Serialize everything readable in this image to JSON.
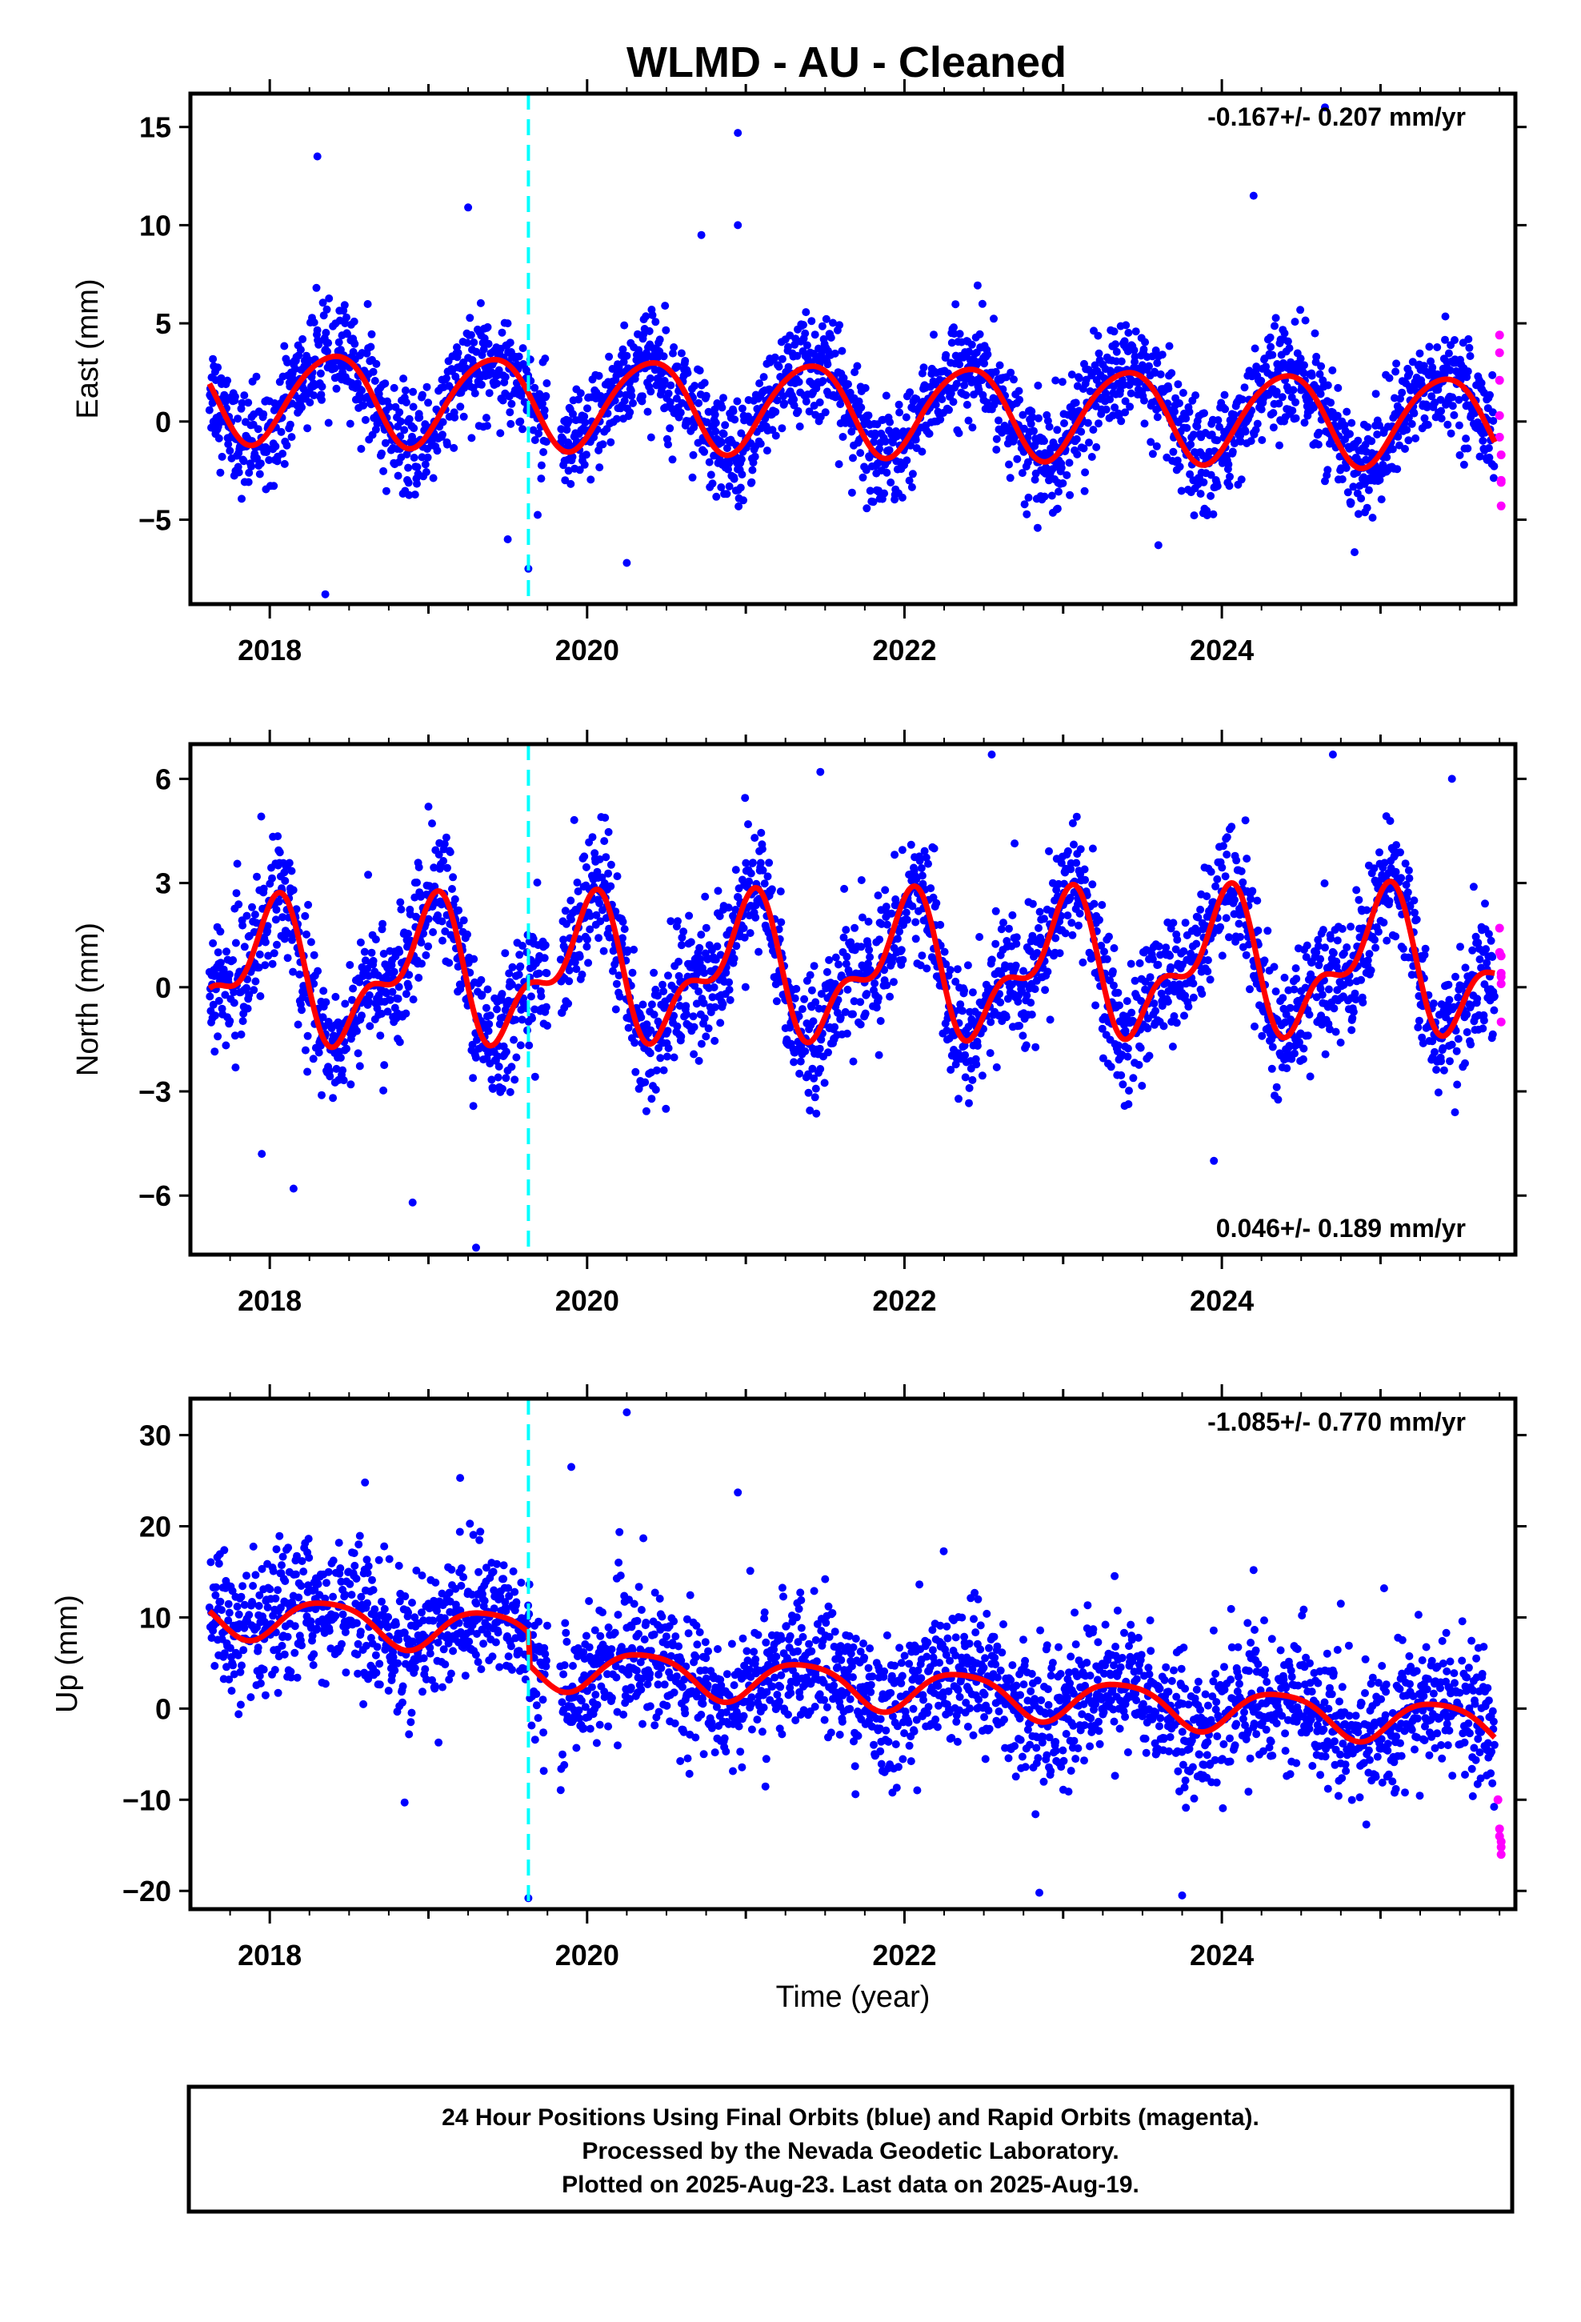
{
  "title": "WLMD  - AU - Cleaned",
  "colors": {
    "final_points": "#0000ff",
    "rapid_points": "#ff00ff",
    "model": "#ff0000",
    "event_line": "#00ffff"
  },
  "chart_data": [
    {
      "type": "scatter",
      "panel": "east",
      "ylabel": "East (mm)",
      "xlabel": "",
      "xlim": [
        2017.5,
        2025.85
      ],
      "ylim": [
        -9.3,
        16.7
      ],
      "yticks": [
        -5,
        0,
        5,
        10,
        15
      ],
      "yticklabels": [
        "−5",
        "0",
        "5",
        "10",
        "15"
      ],
      "xticks": [
        2018,
        2020,
        2022,
        2024
      ],
      "xticklabels": [
        "2018",
        "2020",
        "2022",
        "2024"
      ],
      "rate_label": "-0.167+/- 0.207 mm/yr",
      "rate_position": "top-right",
      "event_line_x": 2019.63,
      "model": {
        "offset": 0.7,
        "trend": -0.167,
        "amp": 2.3,
        "phase": -0.9,
        "amp2": 0.25,
        "phase2": 0.3,
        "step_at": 2019.63,
        "step": 0.0
      },
      "scatter_sd": 1.3,
      "outliers": [
        [
          2018.3,
          13.5
        ],
        [
          2019.25,
          10.9
        ],
        [
          2020.95,
          14.7
        ],
        [
          2020.95,
          10.0
        ],
        [
          2020.72,
          9.5
        ],
        [
          2024.2,
          11.5
        ],
        [
          2024.65,
          16.0
        ],
        [
          2018.35,
          -8.8
        ],
        [
          2019.63,
          -7.5
        ],
        [
          2020.25,
          -7.2
        ],
        [
          2019.5,
          -6.0
        ],
        [
          2023.6,
          -6.3
        ],
        [
          2024.95,
          -4.9
        ]
      ],
      "series": [
        {
          "name": "Final Orbits (blue)",
          "values": []
        },
        {
          "name": "Rapid Orbits (magenta)",
          "x": [
            2025.75,
            2025.75,
            2025.75,
            2025.75,
            2025.75,
            2025.76,
            2025.76,
            2025.76,
            2025.76
          ],
          "values": [
            4.4,
            3.5,
            2.1,
            0.3,
            -0.8,
            -1.7,
            -3.0,
            -3.1,
            -4.3
          ]
        }
      ]
    },
    {
      "type": "scatter",
      "panel": "north",
      "ylabel": "North (mm)",
      "xlabel": "",
      "xlim": [
        2017.5,
        2025.85
      ],
      "ylim": [
        -7.7,
        7.0
      ],
      "yticks": [
        -6,
        -3,
        0,
        3,
        6
      ],
      "yticklabels": [
        "−6",
        "−3",
        "0",
        "3",
        "6"
      ],
      "xticks": [
        2018,
        2020,
        2022,
        2024
      ],
      "xticklabels": [
        "2018",
        "2020",
        "2022",
        "2024"
      ],
      "rate_label": "0.046+/- 0.189 mm/yr",
      "rate_position": "bottom-right",
      "event_line_x": 2019.63,
      "model": {
        "offset": 0.5,
        "trend": 0.046,
        "amp": 1.7,
        "phase": 1.6,
        "amp2": 0.9,
        "phase2": 0.4,
        "step_at": 2019.63,
        "step": 0.0
      },
      "scatter_sd": 0.9,
      "outliers": [
        [
          2019.3,
          -7.5
        ],
        [
          2018.9,
          -6.2
        ],
        [
          2018.15,
          -5.8
        ],
        [
          2017.95,
          -4.8
        ],
        [
          2021.47,
          6.2
        ],
        [
          2022.55,
          6.7
        ],
        [
          2024.7,
          6.7
        ],
        [
          2025.45,
          6.0
        ],
        [
          2019.0,
          5.2
        ],
        [
          2023.95,
          -5.0
        ]
      ],
      "series": [
        {
          "name": "Final Orbits (blue)",
          "values": []
        },
        {
          "name": "Rapid Orbits (magenta)",
          "x": [
            2025.75,
            2025.75,
            2025.76,
            2025.76,
            2025.76,
            2025.76,
            2025.76
          ],
          "values": [
            1.7,
            1.0,
            0.9,
            0.4,
            0.3,
            0.1,
            -1.0
          ]
        }
      ]
    },
    {
      "type": "scatter",
      "panel": "up",
      "ylabel": "Up (mm)",
      "xlabel": "Time (year)",
      "xlim": [
        2017.5,
        2025.85
      ],
      "ylim": [
        -22,
        34
      ],
      "yticks": [
        -20,
        -10,
        0,
        10,
        20,
        30
      ],
      "yticklabels": [
        "−20",
        "−10",
        "0",
        "10",
        "20",
        "30"
      ],
      "xticks": [
        2018,
        2020,
        2022,
        2024
      ],
      "xticklabels": [
        "2018",
        "2020",
        "2022",
        "2024"
      ],
      "rate_label": "-1.085+/- 0.770 mm/yr",
      "rate_position": "top-right",
      "event_line_x": 2019.63,
      "model": {
        "offset": 6.2,
        "trend": -1.085,
        "amp": 2.3,
        "phase": -0.7,
        "amp2": 0.4,
        "phase2": 0.0,
        "step_at": 2019.63,
        "step": -3.5
      },
      "scatter_sd": 3.6,
      "outliers": [
        [
          2020.25,
          32.5
        ],
        [
          2019.9,
          26.5
        ],
        [
          2019.2,
          25.3
        ],
        [
          2018.6,
          24.8
        ],
        [
          2020.95,
          23.7
        ],
        [
          2018.85,
          -10.3
        ],
        [
          2019.63,
          -20.8
        ],
        [
          2023.75,
          -20.5
        ],
        [
          2022.85,
          -20.2
        ],
        [
          2024.2,
          15.2
        ],
        [
          2021.5,
          14.2
        ],
        [
          2024.75,
          11.5
        ]
      ],
      "series": [
        {
          "name": "Final Orbits (blue)",
          "values": []
        },
        {
          "name": "Rapid Orbits (magenta)",
          "x": [
            2025.74,
            2025.75,
            2025.75,
            2025.76,
            2025.76,
            2025.76
          ],
          "values": [
            -10.0,
            -13.2,
            -14.0,
            -14.6,
            -15.2,
            -16.0
          ]
        }
      ]
    }
  ],
  "footer": {
    "line1": "24 Hour Positions Using Final Orbits (blue) and Rapid Orbits (magenta).",
    "line2": "Processed by the Nevada Geodetic Laboratory.",
    "line3": "Plotted on 2025-Aug-23. Last data on 2025-Aug-19."
  }
}
